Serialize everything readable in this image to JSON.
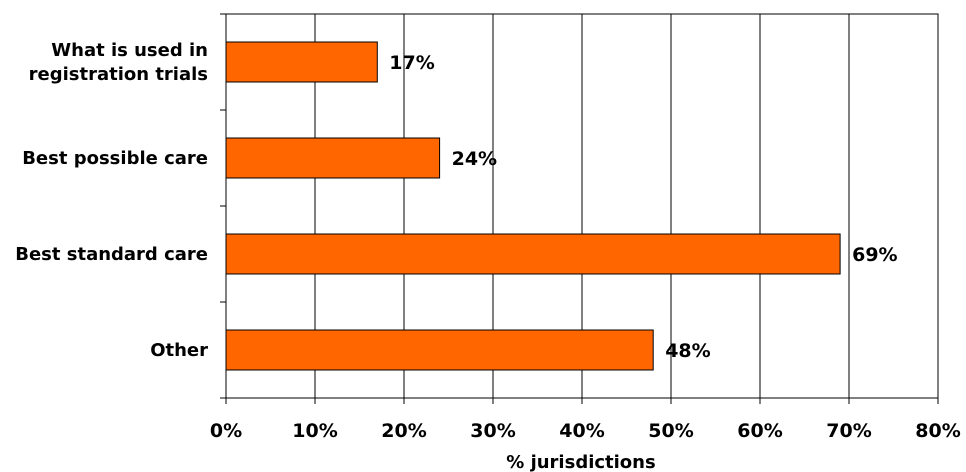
{
  "chart_data": {
    "type": "bar",
    "orientation": "horizontal",
    "categories": [
      [
        "What is used in",
        "registration trials"
      ],
      [
        "Best possible care"
      ],
      [
        "Best standard care"
      ],
      [
        "Other"
      ]
    ],
    "values": [
      17,
      24,
      69,
      48
    ],
    "data_labels": [
      "17%",
      "24%",
      "69%",
      "48%"
    ],
    "xlabel": "% jurisdictions",
    "xlim": [
      0,
      80
    ],
    "xticks": [
      0,
      10,
      20,
      30,
      40,
      50,
      60,
      70,
      80
    ],
    "xtick_labels": [
      "0%",
      "10%",
      "20%",
      "30%",
      "40%",
      "50%",
      "60%",
      "70%",
      "80%"
    ],
    "grid": "vertical",
    "legend": "none",
    "bar_color": "#FF6600",
    "bar_edge_color": "#000000"
  }
}
